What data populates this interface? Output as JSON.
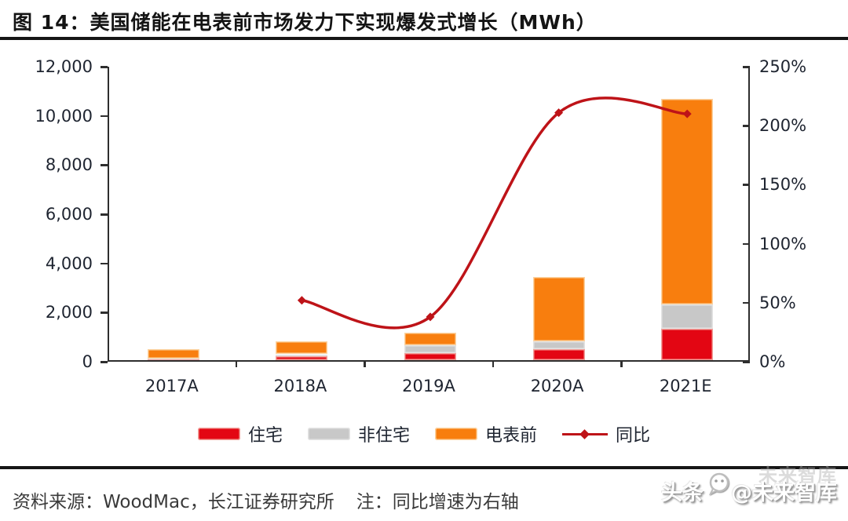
{
  "header": {
    "title": "图 14：美国储能在电表前市场发力下实现爆发式增长（MWh）"
  },
  "chart_data": {
    "type": "bar",
    "subtype": "stacked-bars-with-line",
    "title": "美国储能在电表前市场发力下实现爆发式增长（MWh）",
    "unit": "MWh",
    "categories": [
      "2017A",
      "2018A",
      "2019A",
      "2020A",
      "2021E"
    ],
    "series": [
      {
        "name": "住宅",
        "type": "bar",
        "color": "#e30613",
        "edge": "#f2a09a",
        "values": [
          20,
          160,
          300,
          450,
          1280
        ]
      },
      {
        "name": "非住宅",
        "type": "bar",
        "color": "#c8c8c8",
        "edge": "#e3e3e3",
        "values": [
          40,
          80,
          300,
          320,
          990
        ]
      },
      {
        "name": "电表前",
        "type": "bar",
        "color": "#f87e0e",
        "edge": "#fcd3a0",
        "values": [
          390,
          530,
          510,
          2620,
          8360
        ]
      },
      {
        "name": "同比",
        "type": "line",
        "color": "#be1318",
        "axis": "right",
        "values": [
          null,
          52,
          38,
          211,
          210
        ]
      }
    ],
    "totals": [
      450,
      770,
      1110,
      3390,
      10630
    ],
    "left_axis": {
      "min": 0,
      "max": 12000,
      "tick_step": 2000,
      "ticks": [
        "0",
        "2,000",
        "4,000",
        "6,000",
        "8,000",
        "10,000",
        "12,000"
      ]
    },
    "right_axis": {
      "min": 0,
      "max": 250,
      "tick_step": 50,
      "ticks": [
        "0%",
        "50%",
        "100%",
        "150%",
        "200%",
        "250%"
      ]
    },
    "grid": false,
    "legend_position": "bottom",
    "note": "同比增速为右轴"
  },
  "footer": {
    "source": "资料来源：WoodMac，长江证券研究所",
    "note": "注：同比增速为右轴"
  },
  "watermark": {
    "prefix": "头条",
    "handle": "@未来智库",
    "ghost": "未来智库"
  }
}
